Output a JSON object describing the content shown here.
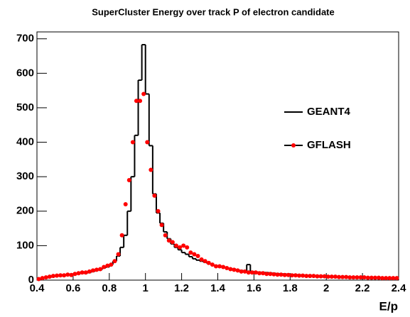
{
  "chart_data": {
    "type": "histogram",
    "title": "SuperCluster Energy over track P of electron candidate",
    "x_label": "E/p",
    "bins": [
      0.4,
      0.42,
      0.44,
      0.46,
      0.48,
      0.5,
      0.52,
      0.54,
      0.56,
      0.58,
      0.6,
      0.62,
      0.64,
      0.66,
      0.68,
      0.7,
      0.72,
      0.74,
      0.76,
      0.78,
      0.8,
      0.82,
      0.84,
      0.86,
      0.88,
      0.9,
      0.92,
      0.94,
      0.96,
      0.98,
      1.0,
      1.02,
      1.04,
      1.06,
      1.08,
      1.1,
      1.12,
      1.14,
      1.16,
      1.18,
      1.2,
      1.22,
      1.24,
      1.26,
      1.28,
      1.3,
      1.32,
      1.34,
      1.36,
      1.38,
      1.4,
      1.42,
      1.44,
      1.46,
      1.48,
      1.5,
      1.52,
      1.54,
      1.56,
      1.58,
      1.6,
      1.62,
      1.64,
      1.66,
      1.68,
      1.7,
      1.72,
      1.74,
      1.76,
      1.78,
      1.8,
      1.82,
      1.84,
      1.86,
      1.88,
      1.9,
      1.92,
      1.94,
      1.96,
      1.98,
      2.0,
      2.02,
      2.04,
      2.06,
      2.08,
      2.1,
      2.12,
      2.14,
      2.16,
      2.18,
      2.2,
      2.22,
      2.24,
      2.26,
      2.28,
      2.3,
      2.32,
      2.34,
      2.36,
      2.38,
      2.4
    ],
    "series": [
      {
        "name": "GEANT4",
        "color": "#000000",
        "style": "step",
        "values": [
          2,
          5,
          6,
          8,
          10,
          12,
          12,
          14,
          15,
          15,
          16,
          18,
          20,
          20,
          22,
          25,
          28,
          30,
          35,
          38,
          45,
          55,
          70,
          95,
          130,
          200,
          300,
          420,
          580,
          683,
          540,
          390,
          250,
          195,
          165,
          140,
          120,
          105,
          95,
          88,
          80,
          75,
          68,
          62,
          58,
          55,
          52,
          48,
          45,
          42,
          40,
          38,
          35,
          34,
          32,
          30,
          28,
          27,
          45,
          25,
          24,
          23,
          22,
          22,
          21,
          20,
          19,
          18,
          18,
          17,
          16,
          16,
          15,
          15,
          14,
          14,
          13,
          13,
          12,
          12,
          12,
          11,
          11,
          10,
          10,
          10,
          9,
          9,
          9,
          8,
          8,
          8,
          8,
          7,
          7,
          7,
          6,
          6,
          6,
          6
        ]
      },
      {
        "name": "GFLASH",
        "color": "#ff0000",
        "style": "points",
        "values": [
          3,
          6,
          8,
          10,
          12,
          13,
          14,
          14,
          16,
          15,
          18,
          20,
          22,
          22,
          25,
          28,
          30,
          32,
          38,
          42,
          45,
          55,
          75,
          130,
          220,
          290,
          400,
          520,
          520,
          540,
          400,
          320,
          245,
          200,
          160,
          130,
          115,
          110,
          100,
          95,
          100,
          95,
          80,
          75,
          70,
          60,
          55,
          50,
          45,
          40,
          40,
          38,
          35,
          32,
          30,
          28,
          25,
          25,
          22,
          22,
          22,
          20,
          20,
          18,
          18,
          17,
          16,
          16,
          15,
          15,
          14,
          14,
          13,
          13,
          12,
          12,
          12,
          11,
          11,
          11,
          10,
          10,
          10,
          9,
          9,
          9,
          8,
          8,
          8,
          8,
          8,
          7,
          7,
          7,
          7,
          6,
          6,
          6,
          6,
          6
        ]
      }
    ],
    "xlim": [
      0.4,
      2.4
    ],
    "xticks": [
      0.4,
      0.6,
      0.8,
      1,
      1.2,
      1.4,
      1.6,
      1.8,
      2,
      2.2,
      2.4
    ],
    "ylim": [
      0,
      720
    ],
    "yticks": [
      0,
      100,
      200,
      300,
      400,
      500,
      600,
      700
    ],
    "legend": "right"
  }
}
